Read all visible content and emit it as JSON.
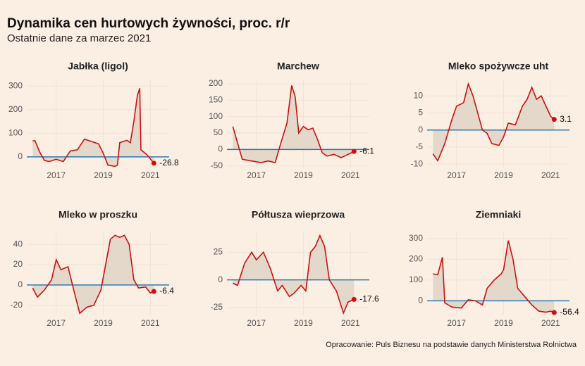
{
  "title": "Dynamika cen hurtowych żywności, proc. r/r",
  "subtitle": "Ostatnie dane za marzec 2021",
  "source": "Opracowanie: Puls Biznesu na podstawie danych Ministerstwa Rolnictwa",
  "chart_data": [
    {
      "type": "line",
      "title": "Jabłka (ligol)",
      "color": "#cc1010",
      "zero_color": "#2a7ab0",
      "area_color": "#e4d8ca",
      "grid": true,
      "x": [
        2016.0,
        2016.1,
        2016.3,
        2016.5,
        2016.7,
        2017.0,
        2017.3,
        2017.6,
        2017.9,
        2018.2,
        2018.5,
        2018.8,
        2019.0,
        2019.2,
        2019.5,
        2019.6,
        2019.7,
        2020.0,
        2020.15,
        2020.3,
        2020.45,
        2020.55,
        2020.6,
        2020.85,
        2021.15
      ],
      "values": [
        68,
        68,
        20,
        -15,
        -20,
        -10,
        -20,
        25,
        30,
        75,
        65,
        55,
        15,
        -35,
        -40,
        -35,
        60,
        70,
        60,
        150,
        260,
        290,
        30,
        10,
        -26.8
      ],
      "xlim": [
        2015.75,
        2021.8
      ],
      "xticks": [
        2017,
        2019,
        2021
      ],
      "ylim": [
        -45,
        330
      ],
      "yticks": [
        0,
        100,
        200,
        300
      ]
    },
    {
      "type": "line",
      "title": "Marchew",
      "color": "#cc1010",
      "zero_color": "#2a7ab0",
      "area_color": "#e4d8ca",
      "grid": true,
      "x": [
        2016.0,
        2016.2,
        2016.4,
        2016.8,
        2017.2,
        2017.5,
        2017.8,
        2018.0,
        2018.3,
        2018.5,
        2018.65,
        2018.8,
        2019.0,
        2019.2,
        2019.4,
        2019.6,
        2019.8,
        2020.0,
        2020.3,
        2020.6,
        2020.9,
        2021.15
      ],
      "values": [
        70,
        20,
        -30,
        -35,
        -40,
        -35,
        -40,
        10,
        80,
        195,
        160,
        50,
        70,
        60,
        65,
        30,
        -10,
        -20,
        -15,
        -25,
        -15,
        -6.1
      ],
      "xlim": [
        2015.75,
        2021.8
      ],
      "xticks": [
        2017,
        2019,
        2021
      ],
      "ylim": [
        -55,
        215
      ],
      "yticks": [
        -50,
        0,
        50,
        100,
        150,
        200
      ]
    },
    {
      "type": "line",
      "title": "Mleko spożywcze uht",
      "color": "#cc1010",
      "zero_color": "#2a7ab0",
      "area_color": "#e4d8ca",
      "grid": true,
      "x": [
        2016.0,
        2016.2,
        2016.5,
        2016.8,
        2017.0,
        2017.3,
        2017.5,
        2017.7,
        2017.9,
        2018.1,
        2018.3,
        2018.5,
        2018.8,
        2019.0,
        2019.2,
        2019.5,
        2019.8,
        2020.0,
        2020.2,
        2020.4,
        2020.6,
        2020.8,
        2021.0,
        2021.15
      ],
      "values": [
        -7,
        -9,
        -4,
        3,
        7,
        8,
        13.5,
        10,
        5,
        0,
        -1,
        -4,
        -4.5,
        -2,
        2,
        1.5,
        7,
        9,
        12.5,
        9,
        10,
        7,
        4,
        3.1
      ],
      "xlim": [
        2015.75,
        2021.8
      ],
      "xticks": [
        2017,
        2019,
        2021
      ],
      "ylim": [
        -11,
        15
      ],
      "yticks": [
        -10,
        -5,
        0,
        5,
        10
      ]
    },
    {
      "type": "line",
      "title": "Mleko w proszku",
      "color": "#cc1010",
      "zero_color": "#2a7ab0",
      "area_color": "#e4d8ca",
      "grid": true,
      "x": [
        2016.0,
        2016.2,
        2016.5,
        2016.8,
        2017.0,
        2017.2,
        2017.5,
        2017.8,
        2018.0,
        2018.3,
        2018.6,
        2018.9,
        2019.1,
        2019.3,
        2019.5,
        2019.7,
        2019.9,
        2020.1,
        2020.3,
        2020.5,
        2020.8,
        2021.0,
        2021.15
      ],
      "values": [
        -3,
        -12,
        -5,
        5,
        25,
        15,
        18,
        -10,
        -28,
        -22,
        -20,
        -5,
        20,
        45,
        49,
        47,
        49,
        40,
        5,
        -3,
        -2,
        -8,
        -6.4
      ],
      "xlim": [
        2015.75,
        2021.8
      ],
      "xticks": [
        2017,
        2019,
        2021
      ],
      "ylim": [
        -30,
        52
      ],
      "yticks": [
        -20,
        0,
        20,
        40
      ]
    },
    {
      "type": "line",
      "title": "Półtusza wieprzowa",
      "color": "#cc1010",
      "zero_color": "#2a7ab0",
      "area_color": "#e4d8ca",
      "grid": true,
      "x": [
        2016.0,
        2016.2,
        2016.5,
        2016.8,
        2017.0,
        2017.3,
        2017.6,
        2017.9,
        2018.1,
        2018.4,
        2018.6,
        2018.9,
        2019.1,
        2019.3,
        2019.5,
        2019.7,
        2019.9,
        2020.1,
        2020.4,
        2020.7,
        2020.9,
        2021.15
      ],
      "values": [
        -3,
        -5,
        15,
        25,
        18,
        25,
        10,
        -10,
        -5,
        -15,
        -12,
        -5,
        -10,
        25,
        30,
        40,
        30,
        0,
        -10,
        -30,
        -20,
        -17.6
      ],
      "xlim": [
        2015.75,
        2021.8
      ],
      "xticks": [
        2017,
        2019,
        2021
      ],
      "ylim": [
        -32,
        43
      ],
      "yticks": [
        -25,
        0,
        25
      ]
    },
    {
      "type": "line",
      "title": "Ziemniaki",
      "color": "#cc1010",
      "zero_color": "#2a7ab0",
      "area_color": "#e4d8ca",
      "grid": true,
      "x": [
        2016.0,
        2016.2,
        2016.4,
        2016.5,
        2016.8,
        2017.2,
        2017.5,
        2017.8,
        2018.1,
        2018.3,
        2018.6,
        2018.9,
        2019.0,
        2019.2,
        2019.4,
        2019.6,
        2019.9,
        2020.2,
        2020.5,
        2020.8,
        2021.0,
        2021.15
      ],
      "values": [
        130,
        125,
        210,
        -10,
        -30,
        -35,
        5,
        0,
        -20,
        60,
        100,
        130,
        150,
        290,
        200,
        60,
        20,
        -20,
        -50,
        -55,
        -50,
        -56.4
      ],
      "xlim": [
        2015.75,
        2021.8
      ],
      "xticks": [
        2017,
        2019,
        2021
      ],
      "ylim": [
        -70,
        330
      ],
      "yticks": [
        0,
        100,
        200,
        300
      ]
    }
  ]
}
